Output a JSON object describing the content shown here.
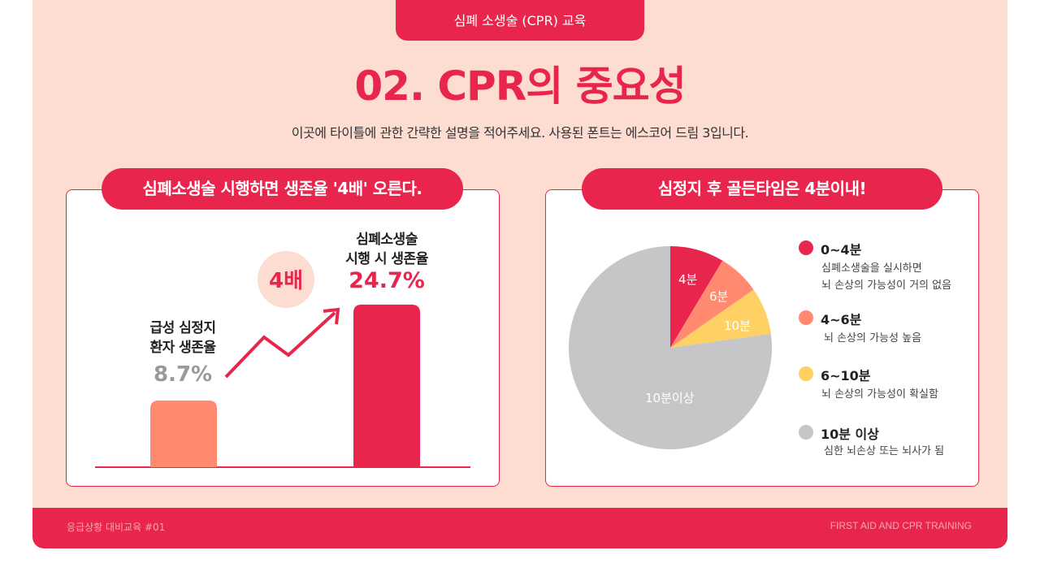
{
  "header": {
    "tab": "심폐 소생술 (CPR) 교육",
    "title": "02. CPR의 중요성",
    "subtitle": "이곳에 타이틀에 관한 간략한 설명을 적어주세요. 사용된 폰트는 에스코어 드림 3입니다."
  },
  "left_panel": {
    "title": "심폐소생술 시행하면 생존율 '4배' 오른다.",
    "multiplier": "4배"
  },
  "right_panel": {
    "title": "심정지 후 골든타임은 4분이내!"
  },
  "footer": {
    "left": "응급상황 대비교육 #01",
    "right": "FIRST AID AND CPR TRAINING"
  },
  "colors": {
    "accent": "#e8264d",
    "orange": "#ff8a70",
    "yellow": "#ffd064",
    "gray": "#c6c6c8",
    "background": "#fddcd1"
  },
  "chart_data": [
    {
      "type": "bar",
      "categories": [
        "급성 심정지 환자 생존율",
        "심폐소생술 시행 시 생존율"
      ],
      "category_lines": [
        [
          "급성 심정지",
          "환자 생존율"
        ],
        [
          "심폐소생술",
          "시행 시 생존율"
        ]
      ],
      "values": [
        8.7,
        24.7
      ],
      "data_labels": [
        "8.7%",
        "24.7%"
      ],
      "colors": [
        "#ff8a70",
        "#e8264d"
      ]
    },
    {
      "type": "pie",
      "slices": [
        {
          "label": "4분",
          "value": 8.6,
          "color": "#e8264d",
          "legend": "0~4분",
          "desc": [
            "심폐소생술을 실시하면",
            "뇌 손상의 가능성이 거의 없음"
          ]
        },
        {
          "label": "6분",
          "value": 6.7,
          "color": "#ff8a70",
          "legend": "4~6분",
          "desc": [
            "뇌 손상의 가능성 높음"
          ]
        },
        {
          "label": "10분",
          "value": 7.5,
          "color": "#ffd064",
          "legend": "6~10분",
          "desc": [
            "뇌 손상의 가능성이 확실함"
          ]
        },
        {
          "label": "10분이상",
          "value": 77.2,
          "color": "#c6c6c8",
          "legend": "10분 이상",
          "desc": [
            "심한 뇌손상 또는 뇌사가 됨"
          ]
        }
      ]
    }
  ]
}
